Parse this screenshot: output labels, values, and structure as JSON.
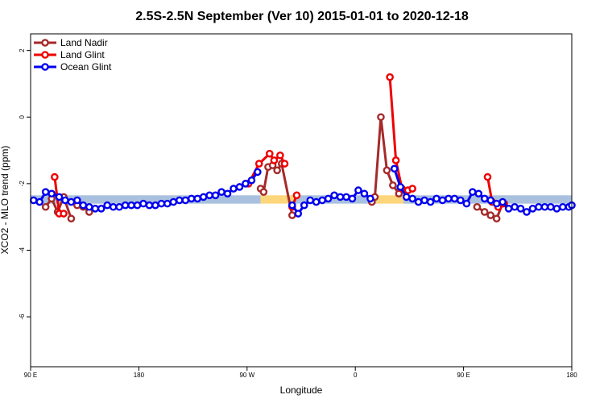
{
  "chart_data": {
    "type": "line",
    "title": "2.5S-2.5N September (Ver 10)   2015-01-01 to 2020-12-18",
    "xlabel": "Longitude",
    "ylabel": "XCO2 - MLO trend (ppm)",
    "xlim": [
      0,
      360
    ],
    "ylim": [
      -7.5,
      2.5
    ],
    "x_ticks": [
      {
        "value": 0,
        "label": "90 E"
      },
      {
        "value": 72,
        "label": "180"
      },
      {
        "value": 144,
        "label": "90 W"
      },
      {
        "value": 216,
        "label": "0"
      },
      {
        "value": 288,
        "label": "90 E"
      },
      {
        "value": 360,
        "label": "180"
      }
    ],
    "y_ticks": [
      {
        "value": 2,
        "label": "2"
      },
      {
        "value": 0,
        "label": "0"
      },
      {
        "value": -2,
        "label": "-2"
      },
      {
        "value": -4,
        "label": "-4"
      },
      {
        "value": -6,
        "label": "-6"
      }
    ],
    "legend_position": "top-left",
    "bands": [
      {
        "x": [
          0,
          153
        ],
        "y": [
          -2.6,
          -2.35
        ],
        "color": "#a9c0de"
      },
      {
        "x": [
          153,
          176
        ],
        "y": [
          -2.6,
          -2.35
        ],
        "color": "#fdd57a"
      },
      {
        "x": [
          176,
          230
        ],
        "y": [
          -2.6,
          -2.35
        ],
        "color": "#a9c0de"
      },
      {
        "x": [
          230,
          248
        ],
        "y": [
          -2.6,
          -2.35
        ],
        "color": "#fdd57a"
      },
      {
        "x": [
          248,
          360
        ],
        "y": [
          -2.6,
          -2.35
        ],
        "color": "#a9c0de"
      }
    ],
    "series": [
      {
        "name": "Land Nadir",
        "color": "#a52a2a",
        "segments": [
          {
            "x": [
              10,
              14,
              18,
              22,
              27
            ],
            "y": [
              -2.7,
              -2.45,
              -2.85,
              -2.4,
              -3.05
            ]
          },
          {
            "x": [
              31,
              35,
              39
            ],
            "y": [
              -2.65,
              -2.7,
              -2.85
            ]
          },
          {
            "x": [
              153,
              155,
              158,
              161,
              164,
              167,
              174
            ],
            "y": [
              -2.15,
              -2.25,
              -1.5,
              -1.45,
              -1.6,
              -1.4,
              -2.95
            ]
          },
          {
            "x": [
              227,
              229,
              233,
              237,
              241,
              245
            ],
            "y": [
              -2.55,
              -2.4,
              0,
              -1.6,
              -2.05,
              -2.3
            ]
          },
          {
            "x": [
              297,
              302,
              306,
              310,
              314
            ],
            "y": [
              -2.7,
              -2.85,
              -2.95,
              -3.05,
              -2.6
            ]
          }
        ]
      },
      {
        "name": "Land Glint",
        "color": "#ee0000",
        "segments": [
          {
            "x": [
              16,
              19,
              22
            ],
            "y": [
              -1.8,
              -2.9,
              -2.9
            ]
          },
          {
            "x": [
              145,
              152,
              159,
              162,
              166,
              169
            ],
            "y": [
              -2.0,
              -1.4,
              -1.1,
              -1.3,
              -1.15,
              -1.4
            ]
          },
          {
            "x": [
              174,
              177
            ],
            "y": [
              -2.7,
              -2.35
            ]
          },
          {
            "x": [
              239,
              243,
              247,
              251,
              254
            ],
            "y": [
              1.2,
              -1.3,
              -2.15,
              -2.2,
              -2.15
            ]
          },
          {
            "x": [
              304,
              307,
              311,
              315
            ],
            "y": [
              -1.8,
              -2.55,
              -2.7,
              -2.6
            ]
          }
        ]
      },
      {
        "name": "Ocean Glint",
        "color": "#0000ee",
        "segments": [
          {
            "x": [
              2,
              6,
              10,
              14,
              19,
              23,
              27,
              31,
              35,
              39,
              43,
              47,
              51,
              55,
              59,
              63,
              67,
              71,
              75,
              79,
              83,
              87,
              91,
              95,
              99,
              103,
              107,
              111,
              115,
              119,
              123,
              127,
              131,
              135,
              139,
              143,
              147,
              151
            ],
            "y": [
              -2.5,
              -2.55,
              -2.25,
              -2.3,
              -2.4,
              -2.5,
              -2.55,
              -2.5,
              -2.65,
              -2.7,
              -2.75,
              -2.75,
              -2.65,
              -2.7,
              -2.7,
              -2.65,
              -2.65,
              -2.65,
              -2.6,
              -2.65,
              -2.65,
              -2.6,
              -2.6,
              -2.55,
              -2.5,
              -2.5,
              -2.45,
              -2.45,
              -2.4,
              -2.35,
              -2.35,
              -2.25,
              -2.3,
              -2.15,
              -2.1,
              -2.0,
              -1.9,
              -1.65
            ]
          },
          {
            "x": [
              174,
              178,
              182,
              186,
              190,
              194,
              198,
              202,
              206,
              210,
              214,
              218,
              222,
              226
            ],
            "y": [
              -2.65,
              -2.9,
              -2.65,
              -2.5,
              -2.55,
              -2.5,
              -2.45,
              -2.35,
              -2.4,
              -2.4,
              -2.45,
              -2.2,
              -2.3,
              -2.45
            ]
          },
          {
            "x": [
              242,
              246,
              250,
              254,
              258,
              262,
              266,
              270,
              274,
              278,
              282,
              286,
              290,
              294,
              298,
              302,
              306,
              310,
              314,
              318,
              322,
              326,
              330,
              334,
              338,
              342,
              346,
              350,
              354,
              358,
              360
            ],
            "y": [
              -1.55,
              -2.1,
              -2.4,
              -2.45,
              -2.55,
              -2.5,
              -2.55,
              -2.45,
              -2.5,
              -2.45,
              -2.45,
              -2.5,
              -2.6,
              -2.25,
              -2.3,
              -2.45,
              -2.5,
              -2.6,
              -2.55,
              -2.75,
              -2.7,
              -2.75,
              -2.85,
              -2.75,
              -2.7,
              -2.7,
              -2.7,
              -2.75,
              -2.7,
              -2.7,
              -2.65
            ]
          }
        ]
      }
    ]
  }
}
